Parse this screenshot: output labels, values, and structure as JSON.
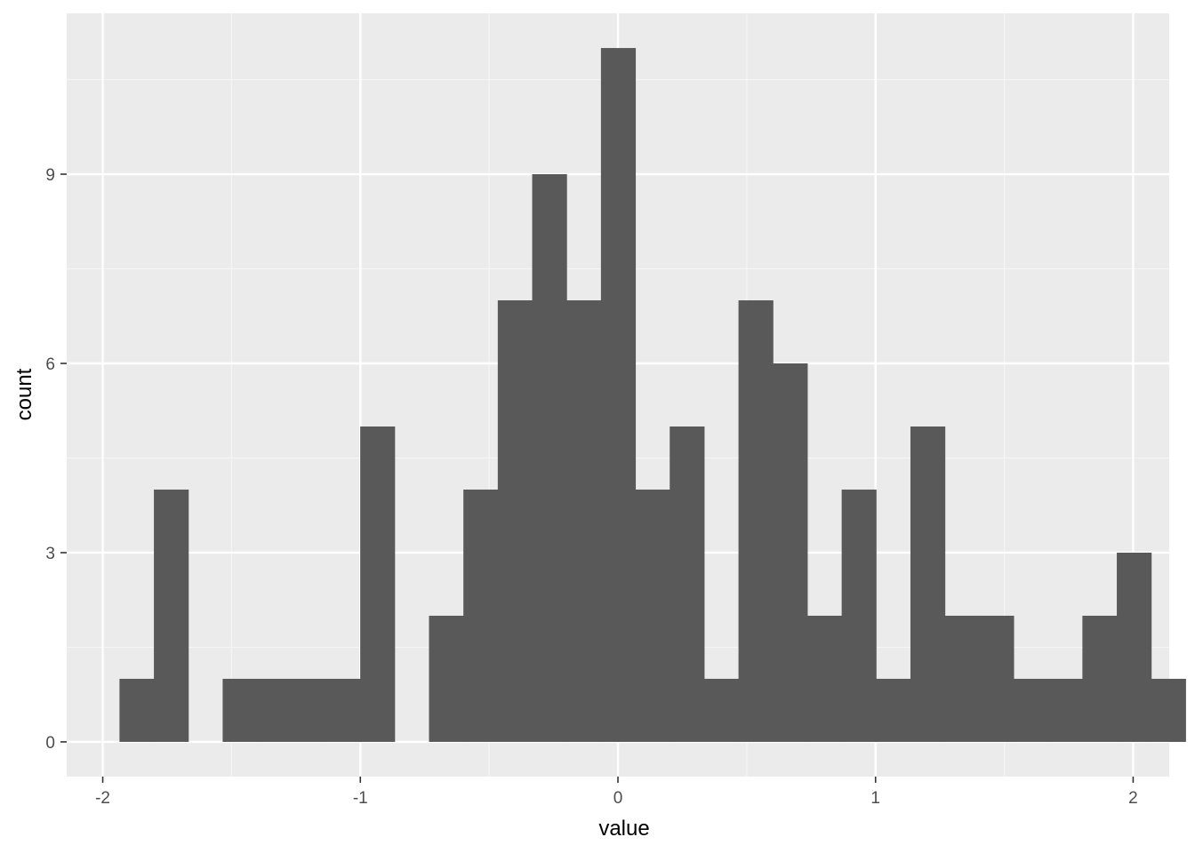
{
  "chart_data": {
    "type": "bar",
    "subtype": "histogram",
    "xlabel": "value",
    "ylabel": "count",
    "xlim": [
      -2.14,
      2.14
    ],
    "ylim": [
      -0.55,
      11.55
    ],
    "x_ticks": [
      {
        "value": -2,
        "label": "-2"
      },
      {
        "value": -1,
        "label": "-1"
      },
      {
        "value": 0,
        "label": "0"
      },
      {
        "value": 1,
        "label": "1"
      },
      {
        "value": 2,
        "label": "2"
      }
    ],
    "y_ticks": [
      {
        "value": 0,
        "label": "0"
      },
      {
        "value": 3,
        "label": "3"
      },
      {
        "value": 6,
        "label": "6"
      },
      {
        "value": 9,
        "label": "9"
      }
    ],
    "bins": {
      "start": -1.935,
      "width": 0.1335,
      "counts": [
        1,
        4,
        0,
        1,
        1,
        1,
        1,
        5,
        0,
        2,
        4,
        7,
        9,
        7,
        11,
        4,
        5,
        1,
        7,
        6,
        2,
        4,
        1,
        5,
        2,
        2,
        1,
        1,
        2,
        3,
        1
      ]
    },
    "grid": true,
    "legend": "none",
    "colors": {
      "bar_fill": "#595959",
      "panel_background": "#ebebeb",
      "grid_major": "#ffffff",
      "grid_minor": "#f5f5f5",
      "tick_text": "#4d4d4d",
      "axis_title": "#000000",
      "tick_mark": "#333333"
    }
  }
}
